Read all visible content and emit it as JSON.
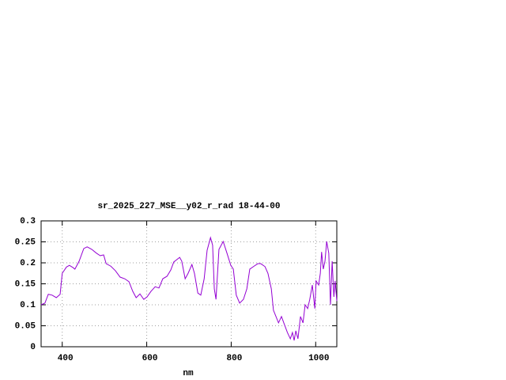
{
  "chart_data": {
    "type": "line",
    "title": "sr_2025_227_MSE__y02_r_rad 18-44-00",
    "x_label": "nm",
    "x": [
      350,
      359,
      367,
      376,
      386,
      395,
      400,
      410,
      417,
      425,
      430,
      440,
      451,
      459,
      470,
      481,
      490,
      498,
      504,
      515,
      526,
      537,
      548,
      558,
      567,
      575,
      584,
      593,
      601,
      610,
      620,
      629,
      638,
      648,
      657,
      664,
      678,
      683,
      691,
      698,
      707,
      713,
      721,
      728,
      736,
      743,
      751,
      756,
      760,
      764,
      771,
      781,
      790,
      799,
      805,
      812,
      820,
      829,
      837,
      844,
      854,
      863,
      870,
      880,
      887,
      895,
      900,
      906,
      912,
      919,
      926,
      933,
      940,
      945,
      949,
      953,
      958,
      964,
      970,
      975,
      981,
      986,
      992,
      998,
      1001,
      1007,
      1011,
      1014,
      1018,
      1022,
      1026,
      1031,
      1035,
      1039,
      1043,
      1046,
      1050
    ],
    "series": [
      {
        "name": "sr_2025_227_MSE__y02_r_rad",
        "color": "#9400d3",
        "values": [
          0.1,
          0.104,
          0.125,
          0.123,
          0.117,
          0.125,
          0.175,
          0.19,
          0.194,
          0.189,
          0.185,
          0.204,
          0.234,
          0.238,
          0.232,
          0.223,
          0.217,
          0.219,
          0.198,
          0.192,
          0.181,
          0.166,
          0.162,
          0.155,
          0.132,
          0.117,
          0.126,
          0.113,
          0.119,
          0.132,
          0.143,
          0.14,
          0.162,
          0.168,
          0.183,
          0.202,
          0.213,
          0.204,
          0.162,
          0.175,
          0.196,
          0.175,
          0.128,
          0.123,
          0.162,
          0.23,
          0.26,
          0.242,
          0.138,
          0.113,
          0.232,
          0.251,
          0.223,
          0.194,
          0.185,
          0.123,
          0.104,
          0.113,
          0.138,
          0.185,
          0.192,
          0.198,
          0.198,
          0.191,
          0.175,
          0.138,
          0.087,
          0.072,
          0.057,
          0.072,
          0.053,
          0.034,
          0.019,
          0.034,
          0.015,
          0.038,
          0.019,
          0.072,
          0.057,
          0.1,
          0.091,
          0.113,
          0.147,
          0.091,
          0.157,
          0.147,
          0.175,
          0.226,
          0.185,
          0.204,
          0.251,
          0.223,
          0.1,
          0.204,
          0.119,
          0.157,
          0.109
        ]
      }
    ],
    "xlim": [
      350,
      1050
    ],
    "xticks": [
      400,
      600,
      800,
      1000
    ],
    "ylim": [
      0,
      0.3
    ],
    "yticks": [
      0,
      0.05,
      0.1,
      0.15,
      0.2,
      0.25,
      0.3
    ],
    "grid": true
  }
}
